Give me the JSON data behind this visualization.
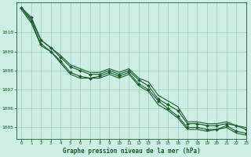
{
  "title": "Graphe pression niveau de la mer (hPa)",
  "background_color": "#cceee4",
  "grid_color": "#99ccbb",
  "line_color": "#1a5c2a",
  "xlim": [
    -0.5,
    23
  ],
  "ylim": [
    1004.4,
    1011.6
  ],
  "yticks": [
    1005,
    1006,
    1007,
    1008,
    1009,
    1010
  ],
  "xticks": [
    0,
    1,
    2,
    3,
    4,
    5,
    6,
    7,
    8,
    9,
    10,
    11,
    12,
    13,
    14,
    15,
    16,
    17,
    18,
    19,
    20,
    21,
    22,
    23
  ],
  "series": [
    {
      "x": [
        0,
        1,
        2,
        3,
        4,
        5,
        6,
        7,
        8,
        9,
        10,
        11,
        12,
        13,
        14,
        15,
        16,
        17,
        18,
        19,
        20,
        21,
        22,
        23
      ],
      "y": [
        1011.3,
        1010.8,
        1009.6,
        1009.2,
        1008.7,
        1008.2,
        1008.0,
        1007.8,
        1007.8,
        1008.0,
        1007.8,
        1008.0,
        1007.5,
        1007.2,
        1006.5,
        1006.2,
        1005.9,
        1005.2,
        1005.2,
        1005.1,
        1005.1,
        1005.2,
        1005.1,
        1004.9
      ],
      "marker": true
    },
    {
      "x": [
        0,
        1,
        2,
        3,
        4,
        5,
        6,
        7,
        8,
        9,
        10,
        11,
        12,
        13,
        14,
        15,
        16,
        17,
        18,
        19,
        20,
        21,
        22,
        23
      ],
      "y": [
        1011.3,
        1010.7,
        1009.6,
        1009.2,
        1008.8,
        1008.3,
        1008.1,
        1007.9,
        1007.9,
        1008.1,
        1007.9,
        1008.1,
        1007.6,
        1007.4,
        1006.7,
        1006.4,
        1006.1,
        1005.3,
        1005.3,
        1005.2,
        1005.2,
        1005.3,
        1005.1,
        1005.0
      ],
      "marker": false
    },
    {
      "x": [
        0,
        1,
        2,
        3,
        4,
        5,
        6,
        7,
        8,
        9,
        10,
        11,
        12,
        13,
        14,
        15,
        16,
        17,
        18,
        19,
        20,
        21,
        22,
        23
      ],
      "y": [
        1011.3,
        1010.6,
        1009.4,
        1009.0,
        1008.5,
        1007.9,
        1007.7,
        1007.6,
        1007.7,
        1007.9,
        1007.7,
        1007.9,
        1007.3,
        1007.0,
        1006.4,
        1006.0,
        1005.6,
        1005.0,
        1005.0,
        1004.9,
        1004.9,
        1005.1,
        1004.8,
        1004.7
      ],
      "marker": true
    },
    {
      "x": [
        0,
        1,
        2,
        3,
        4,
        5,
        6,
        7,
        8,
        9,
        10,
        11,
        12,
        13,
        14,
        15,
        16,
        17,
        18,
        19,
        20,
        21,
        22,
        23
      ],
      "y": [
        1011.2,
        1010.5,
        1009.3,
        1009.0,
        1008.4,
        1007.8,
        1007.6,
        1007.6,
        1007.6,
        1007.8,
        1007.6,
        1007.8,
        1007.2,
        1006.9,
        1006.2,
        1005.9,
        1005.5,
        1004.9,
        1004.9,
        1004.8,
        1004.9,
        1005.0,
        1004.7,
        1004.6
      ],
      "marker": false
    }
  ]
}
